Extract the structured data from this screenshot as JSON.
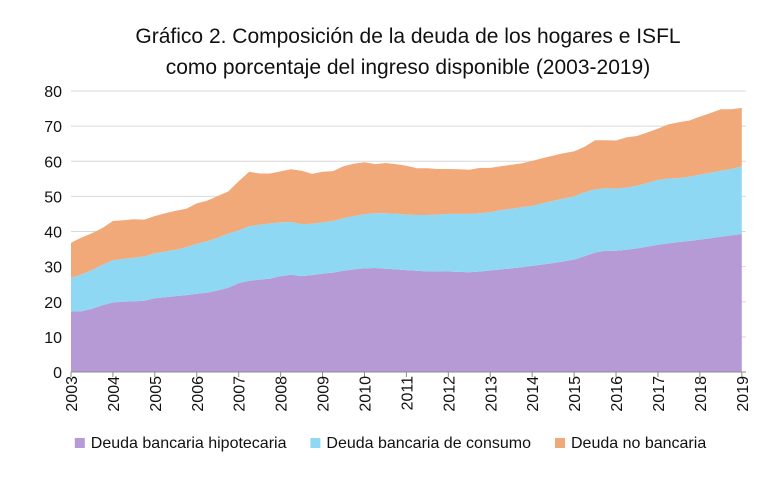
{
  "chart_data": {
    "type": "area",
    "stacked": true,
    "title_lines": [
      "Gráfico 2. Composición de la deuda de los hogares e ISFL",
      "como porcentaje del ingreso disponible (2003-2019)"
    ],
    "xlabel": "",
    "ylabel": "",
    "ylim": [
      0,
      80
    ],
    "y_ticks": [
      "0",
      "10",
      "20",
      "30",
      "40",
      "50",
      "60",
      "70",
      "80"
    ],
    "x_ticks": [
      "2003",
      "2004",
      "2005",
      "2006",
      "2007",
      "2008",
      "2009",
      "2010",
      "2011",
      "2012",
      "2013",
      "2014",
      "2015",
      "2016",
      "2017",
      "2018",
      "2019"
    ],
    "grid": "horizontal",
    "legend_position": "bottom",
    "x": [
      2003.0,
      2003.25,
      2003.5,
      2003.75,
      2004.0,
      2004.25,
      2004.5,
      2004.75,
      2005.0,
      2005.25,
      2005.5,
      2005.75,
      2006.0,
      2006.25,
      2006.5,
      2006.75,
      2007.0,
      2007.25,
      2007.5,
      2007.75,
      2008.0,
      2008.25,
      2008.5,
      2008.75,
      2009.0,
      2009.25,
      2009.5,
      2009.75,
      2010.0,
      2010.25,
      2010.5,
      2010.75,
      2011.0,
      2011.25,
      2011.5,
      2011.75,
      2012.0,
      2012.25,
      2012.5,
      2012.75,
      2013.0,
      2013.25,
      2013.5,
      2013.75,
      2014.0,
      2014.25,
      2014.5,
      2014.75,
      2015.0,
      2015.25,
      2015.5,
      2015.75,
      2016.0,
      2016.25,
      2016.5,
      2016.75,
      2017.0,
      2017.25,
      2017.5,
      2017.75,
      2018.0,
      2018.25,
      2018.5,
      2018.75,
      2019.0
    ],
    "series": [
      {
        "name": "Deuda bancaria hipotecaria",
        "color": "#b59ad6",
        "values": [
          17.3,
          17.3,
          18.0,
          19.0,
          19.8,
          20.0,
          20.1,
          20.3,
          21.0,
          21.3,
          21.6,
          21.9,
          22.3,
          22.6,
          23.2,
          24.0,
          25.3,
          26.0,
          26.3,
          26.6,
          27.3,
          27.7,
          27.3,
          27.6,
          28.0,
          28.3,
          28.8,
          29.2,
          29.5,
          29.6,
          29.4,
          29.2,
          29.0,
          28.8,
          28.6,
          28.7,
          28.6,
          28.5,
          28.4,
          28.6,
          28.9,
          29.2,
          29.5,
          29.8,
          30.2,
          30.6,
          31.0,
          31.5,
          32.0,
          33.0,
          34.0,
          34.5,
          34.5,
          34.8,
          35.2,
          35.7,
          36.2,
          36.6,
          37.0,
          37.3,
          37.7,
          38.1,
          38.5,
          38.9,
          39.3
        ]
      },
      {
        "name": "Deuda bancaria de consumo",
        "color": "#8ed8f4",
        "values": [
          9.5,
          10.5,
          11.0,
          11.5,
          12.0,
          12.2,
          12.4,
          12.6,
          12.8,
          13.0,
          13.2,
          13.6,
          14.2,
          14.6,
          15.0,
          15.4,
          15.0,
          15.5,
          15.6,
          15.7,
          15.3,
          15.0,
          14.8,
          14.6,
          14.6,
          14.7,
          15.0,
          15.2,
          15.4,
          15.6,
          15.8,
          15.9,
          15.8,
          15.9,
          16.1,
          16.1,
          16.4,
          16.5,
          16.6,
          16.6,
          16.6,
          16.9,
          17.0,
          17.1,
          17.1,
          17.4,
          17.7,
          17.9,
          18.0,
          18.2,
          18.0,
          17.8,
          17.7,
          17.7,
          17.8,
          18.1,
          18.5,
          18.5,
          18.2,
          18.3,
          18.5,
          18.6,
          18.8,
          18.9,
          19.2
        ]
      },
      {
        "name": "Deuda no bancaria",
        "color": "#f2a97a",
        "values": [
          10.0,
          10.5,
          10.5,
          10.5,
          11.2,
          11.0,
          11.0,
          10.5,
          10.6,
          10.9,
          11.1,
          11.0,
          11.5,
          11.6,
          11.9,
          12.0,
          14.0,
          15.5,
          14.6,
          14.2,
          14.5,
          15.0,
          15.2,
          14.2,
          14.4,
          14.2,
          14.8,
          14.9,
          14.8,
          14.0,
          14.3,
          14.1,
          13.9,
          13.3,
          13.3,
          13.0,
          12.8,
          12.7,
          12.6,
          12.9,
          12.6,
          12.5,
          12.5,
          12.5,
          12.8,
          12.9,
          12.9,
          12.9,
          12.8,
          12.9,
          14.0,
          13.7,
          13.7,
          14.3,
          14.2,
          14.4,
          14.6,
          15.4,
          15.9,
          16.0,
          16.5,
          17.0,
          17.5,
          17.0,
          16.7
        ]
      }
    ]
  }
}
